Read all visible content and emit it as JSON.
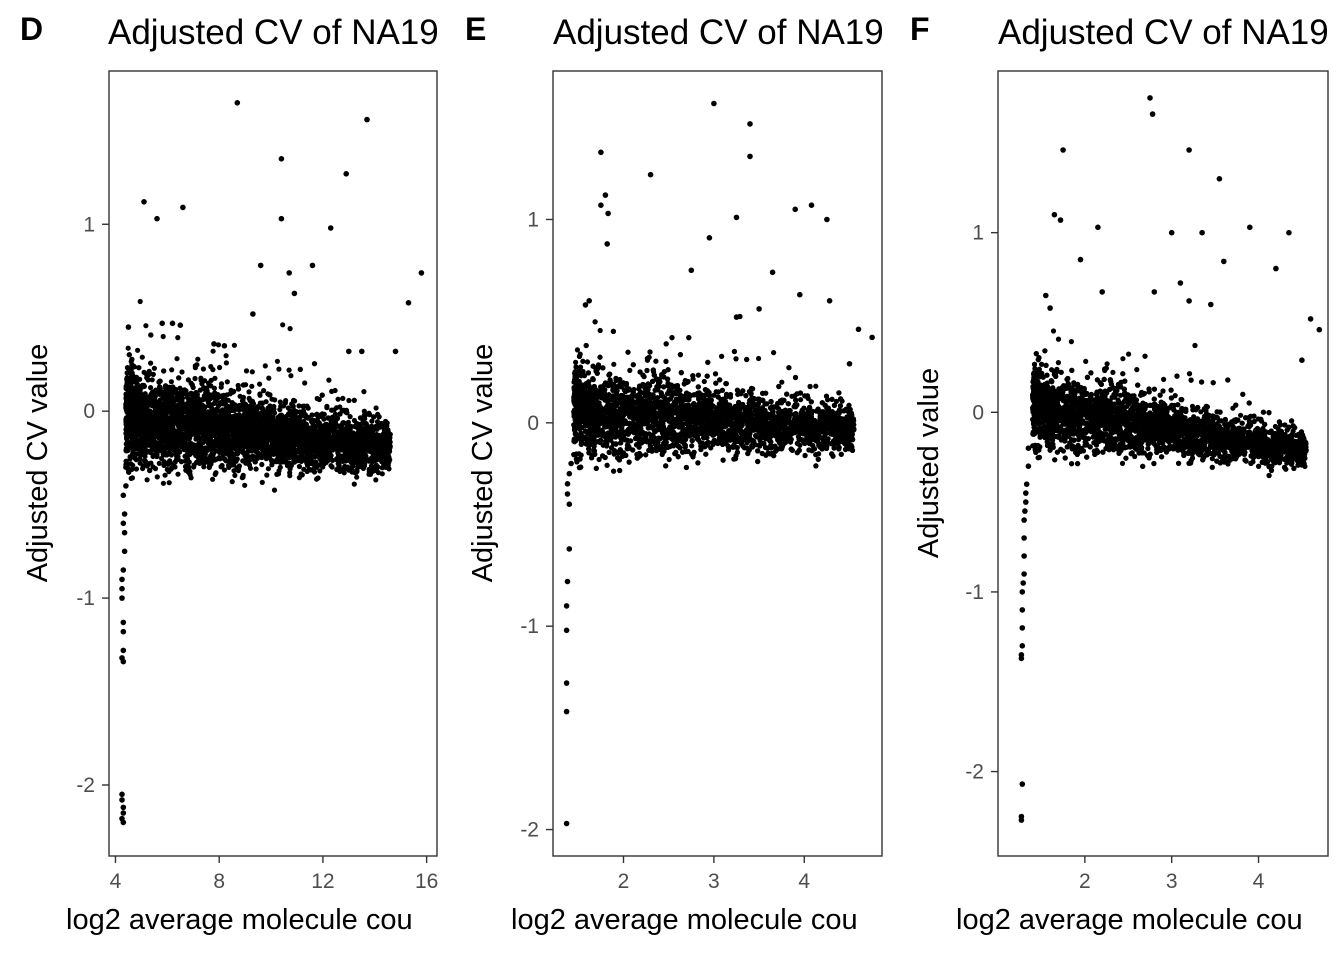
{
  "chart_data": [
    {
      "type": "scatter",
      "panel_label": "D",
      "title": "Adjusted CV of NA19",
      "xlabel": "log2 average molecule cou",
      "ylabel": "Adjusted CV value",
      "xlim": [
        3.75,
        16.4
      ],
      "ylim": [
        -2.38,
        1.82
      ],
      "xticks": [
        4,
        8,
        12,
        16
      ],
      "yticks": [
        -2,
        -1,
        0,
        1
      ],
      "grid": false,
      "cloud": {
        "x_start": 4.4,
        "x_end": 14.6,
        "y_start": -0.05,
        "y_end": -0.2,
        "spread_start": 0.16,
        "spread_end": 0.08,
        "n": 4500
      },
      "tail": [
        [
          4.3,
          -0.45
        ],
        [
          4.3,
          -0.6
        ],
        [
          4.35,
          -0.75
        ],
        [
          4.25,
          -0.9
        ],
        [
          4.25,
          -0.95
        ],
        [
          4.25,
          -1.0
        ],
        [
          4.3,
          -0.85
        ],
        [
          4.3,
          -1.13
        ],
        [
          4.3,
          -1.18
        ],
        [
          4.3,
          -1.28
        ],
        [
          4.25,
          -1.32
        ],
        [
          4.3,
          -1.34
        ],
        [
          4.25,
          -2.05
        ],
        [
          4.25,
          -2.08
        ],
        [
          4.3,
          -2.12
        ],
        [
          4.3,
          -2.15
        ],
        [
          4.25,
          -2.18
        ],
        [
          4.3,
          -2.2
        ],
        [
          4.4,
          -0.3
        ],
        [
          4.35,
          -0.55
        ],
        [
          4.4,
          -0.4
        ],
        [
          4.35,
          -0.65
        ]
      ],
      "outliers": [
        [
          8.7,
          1.65
        ],
        [
          13.7,
          1.56
        ],
        [
          10.4,
          1.35
        ],
        [
          12.9,
          1.27
        ],
        [
          5.1,
          1.12
        ],
        [
          6.6,
          1.09
        ],
        [
          5.6,
          1.03
        ],
        [
          10.4,
          1.03
        ],
        [
          12.3,
          0.98
        ],
        [
          9.6,
          0.78
        ],
        [
          10.7,
          0.74
        ],
        [
          11.6,
          0.78
        ],
        [
          10.9,
          0.63
        ],
        [
          9.3,
          0.52
        ],
        [
          15.8,
          0.74
        ],
        [
          15.3,
          0.58
        ],
        [
          4.5,
          0.45
        ],
        [
          5.8,
          0.47
        ],
        [
          6.2,
          0.47
        ],
        [
          6.5,
          0.46
        ],
        [
          13.5,
          0.32
        ],
        [
          14.8,
          0.32
        ],
        [
          13.0,
          0.32
        ],
        [
          7.8,
          0.36
        ],
        [
          8.2,
          0.35
        ]
      ]
    },
    {
      "type": "scatter",
      "panel_label": "E",
      "title": "Adjusted CV of NA19",
      "xlabel": "log2 average molecule cou",
      "ylabel": "Adjusted CV value",
      "xlim": [
        1.22,
        4.86
      ],
      "ylim": [
        -2.13,
        1.73
      ],
      "xticks": [
        2,
        3,
        4
      ],
      "yticks": [
        -2,
        -1,
        0,
        1
      ],
      "grid": false,
      "cloud": {
        "x_start": 1.45,
        "x_end": 4.55,
        "y_start": 0.05,
        "y_end": -0.04,
        "spread_start": 0.14,
        "spread_end": 0.07,
        "n": 4500
      },
      "tail": [
        [
          1.4,
          -0.25
        ],
        [
          1.38,
          -0.3
        ],
        [
          1.38,
          -0.35
        ],
        [
          1.4,
          -0.4
        ],
        [
          1.42,
          -0.2
        ],
        [
          1.4,
          -0.62
        ],
        [
          1.38,
          -0.78
        ],
        [
          1.37,
          -0.9
        ],
        [
          1.37,
          -1.02
        ],
        [
          1.37,
          -1.28
        ],
        [
          1.37,
          -1.42
        ],
        [
          1.37,
          -1.97
        ]
      ],
      "outliers": [
        [
          3.0,
          1.57
        ],
        [
          3.4,
          1.47
        ],
        [
          1.75,
          1.33
        ],
        [
          3.4,
          1.31
        ],
        [
          2.3,
          1.22
        ],
        [
          1.8,
          1.12
        ],
        [
          1.75,
          1.07
        ],
        [
          1.83,
          1.03
        ],
        [
          1.82,
          0.88
        ],
        [
          3.25,
          1.01
        ],
        [
          3.9,
          1.05
        ],
        [
          4.08,
          1.07
        ],
        [
          4.25,
          1.0
        ],
        [
          2.95,
          0.91
        ],
        [
          2.75,
          0.75
        ],
        [
          3.65,
          0.74
        ],
        [
          3.95,
          0.63
        ],
        [
          4.28,
          0.6
        ],
        [
          4.6,
          0.46
        ],
        [
          4.75,
          0.42
        ],
        [
          1.58,
          0.58
        ],
        [
          1.62,
          0.6
        ],
        [
          3.5,
          0.56
        ],
        [
          3.25,
          0.52
        ],
        [
          4.5,
          0.29
        ]
      ]
    },
    {
      "type": "scatter",
      "panel_label": "F",
      "title": "Adjusted CV of NA19",
      "xlabel": "log2 average molecule cou",
      "ylabel": "Adjusted value",
      "xlim": [
        1.0,
        4.8
      ],
      "ylim": [
        -2.47,
        1.9
      ],
      "xticks": [
        2,
        3,
        4
      ],
      "yticks": [
        -2,
        -1,
        0,
        1
      ],
      "grid": false,
      "cloud": {
        "x_start": 1.4,
        "x_end": 4.55,
        "y_start": 0.02,
        "y_end": -0.22,
        "spread_start": 0.14,
        "spread_end": 0.06,
        "n": 4500
      },
      "tail": [
        [
          1.35,
          -0.2
        ],
        [
          1.35,
          -0.3
        ],
        [
          1.33,
          -0.4
        ],
        [
          1.32,
          -0.5
        ],
        [
          1.3,
          -0.6
        ],
        [
          1.3,
          -0.7
        ],
        [
          1.3,
          -0.8
        ],
        [
          1.3,
          -0.9
        ],
        [
          1.28,
          -1.0
        ],
        [
          1.28,
          -1.1
        ],
        [
          1.28,
          -1.2
        ],
        [
          1.28,
          -1.3
        ],
        [
          1.27,
          -1.35
        ],
        [
          1.27,
          -1.37
        ],
        [
          1.28,
          -2.07
        ],
        [
          1.27,
          -2.25
        ],
        [
          1.27,
          -2.27
        ],
        [
          1.32,
          -0.45
        ],
        [
          1.31,
          -0.55
        ],
        [
          1.29,
          -0.95
        ]
      ],
      "outliers": [
        [
          2.75,
          1.75
        ],
        [
          2.78,
          1.66
        ],
        [
          1.75,
          1.46
        ],
        [
          3.2,
          1.46
        ],
        [
          3.55,
          1.3
        ],
        [
          1.65,
          1.1
        ],
        [
          1.72,
          1.07
        ],
        [
          2.15,
          1.03
        ],
        [
          3.0,
          1.0
        ],
        [
          3.35,
          1.0
        ],
        [
          3.9,
          1.03
        ],
        [
          4.35,
          1.0
        ],
        [
          1.95,
          0.85
        ],
        [
          3.6,
          0.84
        ],
        [
          4.2,
          0.8
        ],
        [
          3.1,
          0.72
        ],
        [
          3.2,
          0.62
        ],
        [
          2.2,
          0.67
        ],
        [
          2.8,
          0.67
        ],
        [
          4.6,
          0.52
        ],
        [
          4.7,
          0.46
        ],
        [
          4.5,
          0.29
        ],
        [
          3.45,
          0.6
        ],
        [
          1.55,
          0.65
        ],
        [
          1.6,
          0.58
        ]
      ]
    }
  ]
}
